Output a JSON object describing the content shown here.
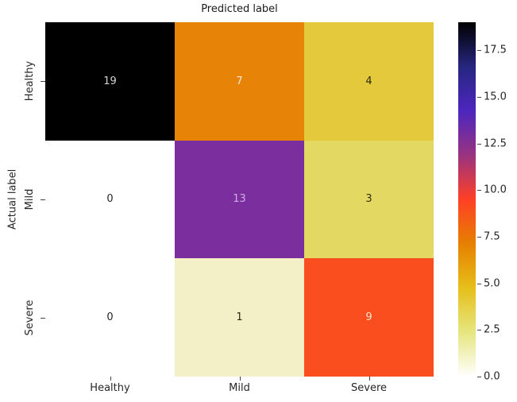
{
  "title": "Predicted label",
  "y_axis": {
    "label": "Actual label"
  },
  "chart_data": {
    "type": "heatmap",
    "title": "Predicted label",
    "xlabel": "",
    "ylabel": "Actual label",
    "categories_x": [
      "Healthy",
      "Mild",
      "Severe"
    ],
    "categories_y": [
      "Healthy",
      "Mild",
      "Severe"
    ],
    "values": [
      [
        19,
        7,
        4
      ],
      [
        0,
        13,
        3
      ],
      [
        0,
        1,
        9
      ]
    ],
    "vmin": 0,
    "vmax": 19,
    "colormap": "CMRmap_r",
    "cell_colors": [
      [
        "#000000",
        "#e78408",
        "#e5c93c"
      ],
      [
        "#ffffff",
        "#7b2e9e",
        "#e3d862"
      ],
      [
        "#ffffff",
        "#f3f0c7",
        "#fa4e1e"
      ]
    ],
    "text_colors": [
      [
        "#d4d4d4",
        "#f2ecd4",
        "#2e2a10"
      ],
      [
        "#262626",
        "#cfaede",
        "#33310f"
      ],
      [
        "#262626",
        "#2b2a16",
        "#f4e4ce"
      ]
    ],
    "colorbar": {
      "tick_values": [
        17.5,
        15.0,
        12.5,
        10.0,
        7.5,
        5.0,
        2.5,
        0.0
      ],
      "tick_labels": [
        "17.5",
        "15.0",
        "12.5",
        "10.0",
        "7.5",
        "5.0",
        "2.5",
        "0.0"
      ],
      "gradient_stops_top_to_bottom": [
        "#000000",
        "#262680",
        "#4d26bf",
        "#993380",
        "#ff4026",
        "#e68000",
        "#e6bf1a",
        "#e6e680",
        "#ffffff"
      ]
    },
    "legend_position": "right-colorbar",
    "grid": false
  }
}
